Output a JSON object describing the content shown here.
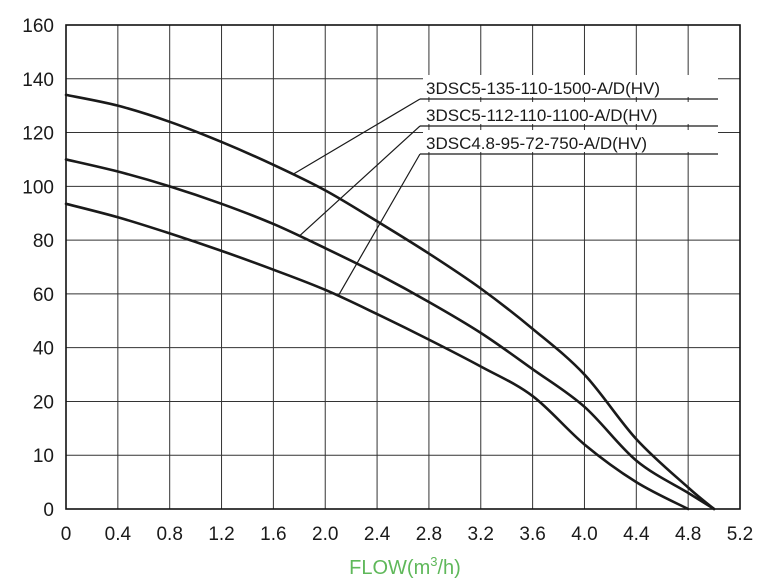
{
  "chart_data": {
    "type": "line",
    "xlabel": "FLOW(m³/h)",
    "xlabel_main": "FLOW(m",
    "xlabel_sup": "3",
    "xlabel_end": "/h)",
    "ylabel": "",
    "xlim": [
      0,
      5.2
    ],
    "y_ticks": [
      "0",
      "10",
      "20",
      "40",
      "60",
      "80",
      "100",
      "120",
      "140",
      "160"
    ],
    "y_tick_values": [
      0,
      10,
      20,
      40,
      60,
      80,
      100,
      120,
      140,
      160
    ],
    "x_ticks": [
      "0",
      "0.4",
      "0.8",
      "1.2",
      "1.6",
      "2.0",
      "2.4",
      "2.8",
      "3.2",
      "3.6",
      "4.0",
      "4.4",
      "4.8",
      "5.2"
    ],
    "x_tick_values": [
      0,
      0.4,
      0.8,
      1.2,
      1.6,
      2.0,
      2.4,
      2.8,
      3.2,
      3.6,
      4.0,
      4.4,
      4.8,
      5.2
    ],
    "grid": true,
    "legend_placement": "top-right",
    "colors": {
      "curve": "#1a1a1a",
      "grid": "#333333",
      "xlabel": "#5fb85a"
    },
    "series": [
      {
        "name": "3DSC5-135-110-1500-A/D(HV)",
        "x": [
          0,
          0.4,
          0.8,
          1.2,
          1.6,
          2.0,
          2.4,
          2.8,
          3.2,
          3.6,
          4.0,
          4.4,
          4.8,
          5.0
        ],
        "y": [
          134,
          130,
          124,
          116.5,
          108,
          98.5,
          87,
          75,
          62,
          47,
          30,
          13,
          4,
          0
        ],
        "callout_x": 1.75
      },
      {
        "name": "3DSC5-112-110-1100-A/D(HV)",
        "x": [
          0,
          0.4,
          0.8,
          1.2,
          1.6,
          2.0,
          2.4,
          2.8,
          3.2,
          3.6,
          4.0,
          4.4,
          4.8,
          5.0
        ],
        "y": [
          110,
          105.5,
          100,
          93.5,
          86,
          77,
          67.5,
          57,
          45.5,
          32,
          19,
          9,
          3,
          0
        ],
        "callout_x": 1.8
      },
      {
        "name": "3DSC4.8-95-72-750-A/D(HV)",
        "x": [
          0,
          0.4,
          0.8,
          1.2,
          1.6,
          2.0,
          2.4,
          2.8,
          3.2,
          3.6,
          4.0,
          4.4,
          4.8
        ],
        "y": [
          93.5,
          88.5,
          82.5,
          76,
          69,
          61.5,
          52.5,
          43,
          33,
          22,
          12,
          5,
          0
        ],
        "callout_x": 2.1
      }
    ]
  }
}
